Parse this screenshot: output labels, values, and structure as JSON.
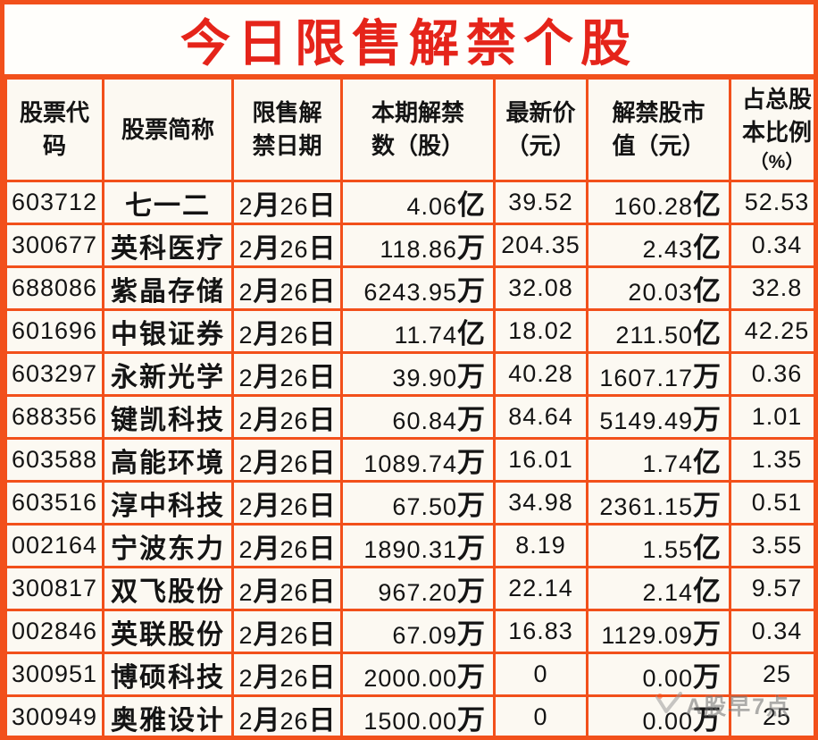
{
  "title": "今日限售解禁个股",
  "labels": {
    "month": "月",
    "day": "日"
  },
  "table": {
    "headers": [
      {
        "lines": [
          "股票代",
          "码"
        ]
      },
      {
        "lines": [
          "股票简称"
        ]
      },
      {
        "lines": [
          "限售解",
          "禁日期"
        ]
      },
      {
        "lines": [
          "本期解禁",
          "数（股）"
        ]
      },
      {
        "lines": [
          "最新价",
          "（元）"
        ]
      },
      {
        "lines": [
          "解禁股市",
          "值（元）"
        ]
      },
      {
        "lines": [
          "占总股",
          "本比例"
        ],
        "sub": "（%）"
      }
    ]
  },
  "rows": [
    {
      "code": "603712",
      "name": "七一二",
      "date_month": "2",
      "date_day": "26",
      "shares_value": "4.06",
      "shares_unit": "亿",
      "price": "39.52",
      "cap_value": "160.28",
      "cap_unit": "亿",
      "pct": "52.53"
    },
    {
      "code": "300677",
      "name": "英科医疗",
      "date_month": "2",
      "date_day": "26",
      "shares_value": "118.86",
      "shares_unit": "万",
      "price": "204.35",
      "cap_value": "2.43",
      "cap_unit": "亿",
      "pct": "0.34"
    },
    {
      "code": "688086",
      "name": "紫晶存储",
      "date_month": "2",
      "date_day": "26",
      "shares_value": "6243.95",
      "shares_unit": "万",
      "price": "32.08",
      "cap_value": "20.03",
      "cap_unit": "亿",
      "pct": "32.8"
    },
    {
      "code": "601696",
      "name": "中银证券",
      "date_month": "2",
      "date_day": "26",
      "shares_value": "11.74",
      "shares_unit": "亿",
      "price": "18.02",
      "cap_value": "211.50",
      "cap_unit": "亿",
      "pct": "42.25"
    },
    {
      "code": "603297",
      "name": "永新光学",
      "date_month": "2",
      "date_day": "26",
      "shares_value": "39.90",
      "shares_unit": "万",
      "price": "40.28",
      "cap_value": "1607.17",
      "cap_unit": "万",
      "pct": "0.36"
    },
    {
      "code": "688356",
      "name": "键凯科技",
      "date_month": "2",
      "date_day": "26",
      "shares_value": "60.84",
      "shares_unit": "万",
      "price": "84.64",
      "cap_value": "5149.49",
      "cap_unit": "万",
      "pct": "1.01"
    },
    {
      "code": "603588",
      "name": "高能环境",
      "date_month": "2",
      "date_day": "26",
      "shares_value": "1089.74",
      "shares_unit": "万",
      "price": "16.01",
      "cap_value": "1.74",
      "cap_unit": "亿",
      "pct": "1.35"
    },
    {
      "code": "603516",
      "name": "淳中科技",
      "date_month": "2",
      "date_day": "26",
      "shares_value": "67.50",
      "shares_unit": "万",
      "price": "34.98",
      "cap_value": "2361.15",
      "cap_unit": "万",
      "pct": "0.51"
    },
    {
      "code": "002164",
      "name": "宁波东力",
      "date_month": "2",
      "date_day": "26",
      "shares_value": "1890.31",
      "shares_unit": "万",
      "price": "8.19",
      "cap_value": "1.55",
      "cap_unit": "亿",
      "pct": "3.55"
    },
    {
      "code": "300817",
      "name": "双飞股份",
      "date_month": "2",
      "date_day": "26",
      "shares_value": "967.20",
      "shares_unit": "万",
      "price": "22.14",
      "cap_value": "2.14",
      "cap_unit": "亿",
      "pct": "9.57"
    },
    {
      "code": "002846",
      "name": "英联股份",
      "date_month": "2",
      "date_day": "26",
      "shares_value": "67.09",
      "shares_unit": "万",
      "price": "16.83",
      "cap_value": "1129.09",
      "cap_unit": "万",
      "pct": "0.34"
    },
    {
      "code": "300951",
      "name": "博硕科技",
      "date_month": "2",
      "date_day": "26",
      "shares_value": "2000.00",
      "shares_unit": "万",
      "price": "0",
      "cap_value": "0.00",
      "cap_unit": "万",
      "pct": "25"
    },
    {
      "code": "300949",
      "name": "奥雅设计",
      "date_month": "2",
      "date_day": "26",
      "shares_value": "1500.00",
      "shares_unit": "万",
      "price": "0",
      "cap_value": "0.00",
      "cap_unit": "万",
      "pct": "25"
    }
  ],
  "watermark": {
    "text": "A股早7点"
  },
  "colors": {
    "border": "#f2501b",
    "title_red": "#e5241a"
  },
  "chart_data": {
    "type": "table",
    "title": "今日限售解禁个股",
    "columns": [
      "股票代码",
      "股票简称",
      "限售解禁日期",
      "本期解禁数（股）",
      "最新价（元）",
      "解禁股市值（元）",
      "占总股本比例（%）"
    ],
    "rows": [
      [
        "603712",
        "七一二",
        "2月26日",
        "4.06亿",
        "39.52",
        "160.28亿",
        "52.53"
      ],
      [
        "300677",
        "英科医疗",
        "2月26日",
        "118.86万",
        "204.35",
        "2.43亿",
        "0.34"
      ],
      [
        "688086",
        "紫晶存储",
        "2月26日",
        "6243.95万",
        "32.08",
        "20.03亿",
        "32.8"
      ],
      [
        "601696",
        "中银证券",
        "2月26日",
        "11.74亿",
        "18.02",
        "211.50亿",
        "42.25"
      ],
      [
        "603297",
        "永新光学",
        "2月26日",
        "39.90万",
        "40.28",
        "1607.17万",
        "0.36"
      ],
      [
        "688356",
        "键凯科技",
        "2月26日",
        "60.84万",
        "84.64",
        "5149.49万",
        "1.01"
      ],
      [
        "603588",
        "高能环境",
        "2月26日",
        "1089.74万",
        "16.01",
        "1.74亿",
        "1.35"
      ],
      [
        "603516",
        "淳中科技",
        "2月26日",
        "67.50万",
        "34.98",
        "2361.15万",
        "0.51"
      ],
      [
        "002164",
        "宁波东力",
        "2月26日",
        "1890.31万",
        "8.19",
        "1.55亿",
        "3.55"
      ],
      [
        "300817",
        "双飞股份",
        "2月26日",
        "967.20万",
        "22.14",
        "2.14亿",
        "9.57"
      ],
      [
        "002846",
        "英联股份",
        "2月26日",
        "67.09万",
        "16.83",
        "1129.09万",
        "0.34"
      ],
      [
        "300951",
        "博硕科技",
        "2月26日",
        "2000.00万",
        "0",
        "0.00万",
        "25"
      ],
      [
        "300949",
        "奥雅设计",
        "2月26日",
        "1500.00万",
        "0",
        "0.00万",
        "25"
      ]
    ]
  }
}
